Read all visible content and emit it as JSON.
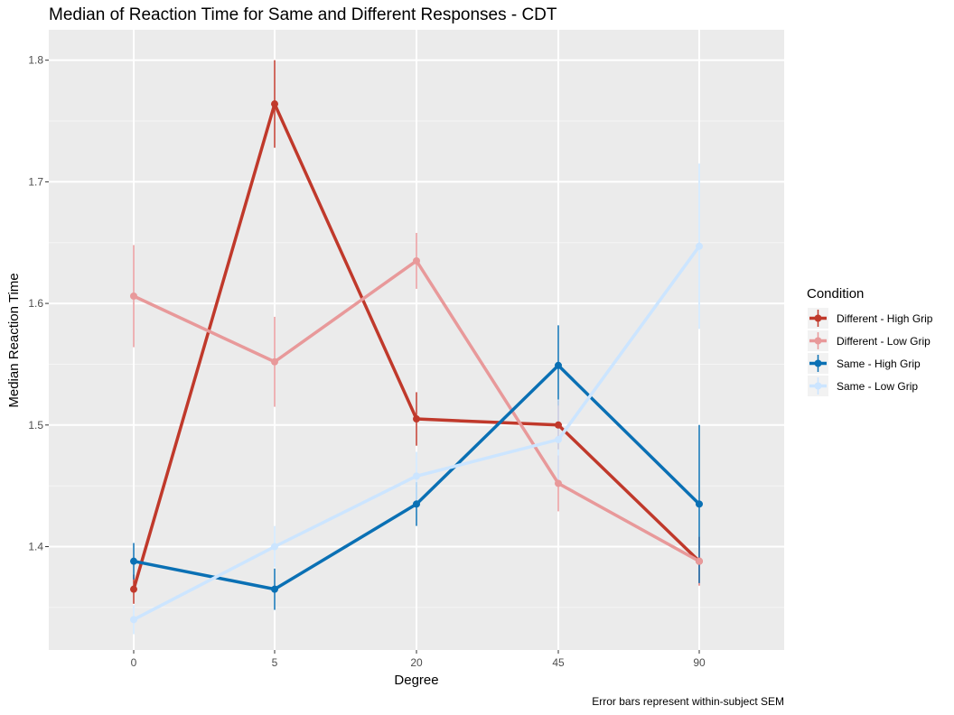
{
  "chart_data": {
    "type": "line",
    "title": "Median of Reaction Time for Same and Different Responses - CDT",
    "xlabel": "Degree",
    "ylabel": "Median Reaction Time",
    "caption": "Error bars represent within-subject SEM",
    "categories": [
      "0",
      "5",
      "20",
      "45",
      "90"
    ],
    "y_ticks": [
      1.4,
      1.5,
      1.6,
      1.7,
      1.8
    ],
    "ylim": [
      1.315,
      1.825
    ],
    "grid": true,
    "legend": {
      "title": "Condition",
      "position": "right"
    },
    "series": [
      {
        "name": "Different - High Grip",
        "color": "#c0392b",
        "values": [
          1.365,
          1.764,
          1.505,
          1.5,
          1.388
        ],
        "errors": [
          0.012,
          0.036,
          0.022,
          0.02,
          0.02
        ]
      },
      {
        "name": "Different - Low Grip",
        "color": "#e8999a",
        "values": [
          1.606,
          1.552,
          1.635,
          1.452,
          1.388
        ],
        "errors": [
          0.042,
          0.037,
          0.023,
          0.023,
          0.02
        ]
      },
      {
        "name": "Same - High Grip",
        "color": "#0a70b4",
        "values": [
          1.388,
          1.365,
          1.435,
          1.549,
          1.435
        ],
        "errors": [
          0.015,
          0.017,
          0.018,
          0.033,
          0.065
        ]
      },
      {
        "name": "Same - Low Grip",
        "color": "#cce5ff",
        "values": [
          1.34,
          1.4,
          1.458,
          1.488,
          1.647
        ],
        "errors": [
          0.012,
          0.017,
          0.02,
          0.033,
          0.068
        ]
      }
    ]
  }
}
